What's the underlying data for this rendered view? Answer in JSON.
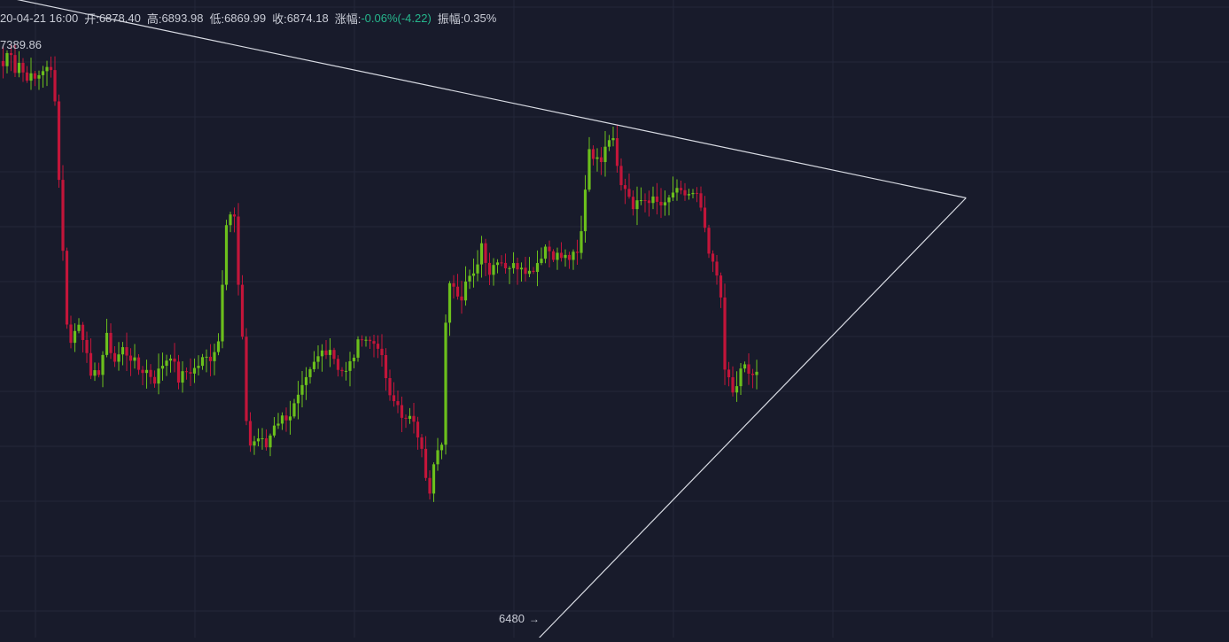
{
  "header": {
    "datetime": "20-04-21 16:00",
    "open_label": "开:",
    "open": "6878.40",
    "high_label": "高:",
    "high": "6893.98",
    "low_label": "低:",
    "low": "6869.99",
    "close_label": "收:",
    "close": "6874.18",
    "change_label": "涨幅:",
    "change": "-0.06%(-4.22)",
    "amplitude_label": "振幅:",
    "amplitude": "0.35%"
  },
  "markers": {
    "max_text": "7389.86",
    "min_text": "6480",
    "min_arrow": "→"
  },
  "colors": {
    "background": "#181b2b",
    "grid": "#23273a",
    "up": "#6bbf1c",
    "down": "#c2153a",
    "trendline": "#d8dbe3",
    "text": "#c9ccd6",
    "negative_text": "#26b58c"
  },
  "chart_data": {
    "type": "candlestick",
    "price_range": [
      6470,
      7440
    ],
    "max_marker": 7389.86,
    "min_marker": 6480,
    "trendlines": [
      {
        "name": "upper",
        "points": [
          [
            0,
            7453.5
          ],
          [
            241.5,
            7142.0
          ]
        ]
      },
      {
        "name": "lower",
        "points": [
          [
            132.5,
            6449.0
          ],
          [
            241.5,
            7142.0
          ]
        ]
      }
    ],
    "candles_path": [
      [
        0,
        7346
      ],
      [
        1,
        7365
      ],
      [
        2,
        7370
      ],
      [
        3,
        7340
      ],
      [
        4,
        7352
      ],
      [
        5,
        7336
      ],
      [
        6,
        7331
      ],
      [
        8,
        7325
      ],
      [
        10,
        7342
      ],
      [
        12,
        7337
      ],
      [
        13,
        7299
      ],
      [
        14,
        7170
      ],
      [
        15,
        7065
      ],
      [
        16,
        6943
      ],
      [
        17,
        6924
      ],
      [
        19,
        6946
      ],
      [
        21,
        6910
      ],
      [
        22,
        6859
      ],
      [
        24,
        6875
      ],
      [
        26,
        6925
      ],
      [
        28,
        6890
      ],
      [
        30,
        6908
      ],
      [
        32,
        6896
      ],
      [
        34,
        6877
      ],
      [
        36,
        6875
      ],
      [
        38,
        6861
      ],
      [
        40,
        6885
      ],
      [
        42,
        6901
      ],
      [
        44,
        6861
      ],
      [
        46,
        6873
      ],
      [
        48,
        6877
      ],
      [
        50,
        6891
      ],
      [
        52,
        6896
      ],
      [
        54,
        6921
      ],
      [
        55,
        7015
      ],
      [
        56,
        7108
      ],
      [
        57,
        7118
      ],
      [
        58,
        7110
      ],
      [
        59,
        7005
      ],
      [
        60,
        6919
      ],
      [
        61,
        6800
      ],
      [
        62,
        6760
      ],
      [
        64,
        6771
      ],
      [
        66,
        6757
      ],
      [
        68,
        6794
      ],
      [
        70,
        6801
      ],
      [
        72,
        6808
      ],
      [
        74,
        6831
      ],
      [
        76,
        6857
      ],
      [
        78,
        6884
      ],
      [
        80,
        6905
      ],
      [
        82,
        6910
      ],
      [
        84,
        6881
      ],
      [
        86,
        6871
      ],
      [
        88,
        6899
      ],
      [
        90,
        6931
      ],
      [
        92,
        6919
      ],
      [
        94,
        6916
      ],
      [
        96,
        6864
      ],
      [
        97,
        6830
      ],
      [
        99,
        6822
      ],
      [
        101,
        6795
      ],
      [
        103,
        6800
      ],
      [
        105,
        6760
      ],
      [
        106,
        6705
      ],
      [
        107,
        6681
      ],
      [
        108,
        6727
      ],
      [
        109,
        6745
      ],
      [
        110,
        6765
      ],
      [
        111,
        6943
      ],
      [
        112,
        7016
      ],
      [
        113,
        7013
      ],
      [
        114,
        6997
      ],
      [
        115,
        6992
      ],
      [
        116,
        7012
      ],
      [
        118,
        7019
      ],
      [
        120,
        7072
      ],
      [
        122,
        7027
      ],
      [
        124,
        7050
      ],
      [
        126,
        7038
      ],
      [
        128,
        7036
      ],
      [
        130,
        7040
      ],
      [
        132,
        7027
      ],
      [
        134,
        7043
      ],
      [
        136,
        7067
      ],
      [
        138,
        7055
      ],
      [
        140,
        7050
      ],
      [
        142,
        7049
      ],
      [
        144,
        7053
      ],
      [
        145,
        7088
      ],
      [
        146,
        7159
      ],
      [
        147,
        7220
      ],
      [
        148,
        7210
      ],
      [
        149,
        7198
      ],
      [
        150,
        7205
      ],
      [
        151,
        7229
      ],
      [
        152,
        7237
      ],
      [
        153,
        7238
      ],
      [
        154,
        7200
      ],
      [
        155,
        7160
      ],
      [
        156,
        7157
      ],
      [
        157,
        7146
      ],
      [
        158,
        7124
      ],
      [
        160,
        7138
      ],
      [
        162,
        7141
      ],
      [
        164,
        7133
      ],
      [
        166,
        7128
      ],
      [
        168,
        7151
      ],
      [
        170,
        7147
      ],
      [
        172,
        7148
      ],
      [
        174,
        7144
      ],
      [
        176,
        7095
      ],
      [
        177,
        7047
      ],
      [
        178,
        7041
      ],
      [
        179,
        7016
      ],
      [
        180,
        6989
      ],
      [
        181,
        6884
      ],
      [
        182,
        6856
      ],
      [
        183,
        6840
      ],
      [
        184,
        6848
      ],
      [
        185,
        6880
      ],
      [
        186,
        6880
      ],
      [
        187,
        6865
      ],
      [
        188,
        6868
      ],
      [
        189,
        6874
      ]
    ]
  }
}
